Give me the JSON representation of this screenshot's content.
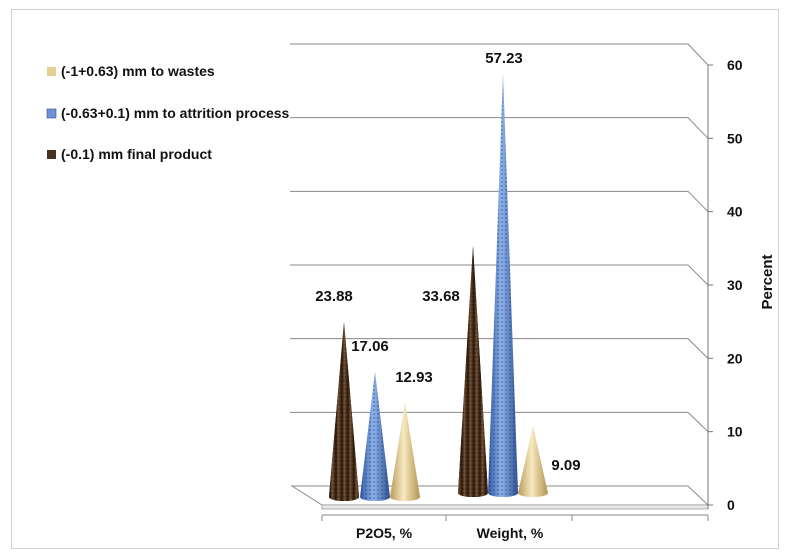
{
  "chart_data": {
    "type": "bar",
    "style": "3d-cone",
    "categories": [
      "P2O5, %",
      "Weight, %"
    ],
    "series": [
      {
        "name": "(-0.1) mm final product",
        "values": [
          23.88,
          33.68
        ],
        "color": "#4a3220"
      },
      {
        "name": "(-0.63+0.1) mm to attrition process",
        "values": [
          17.06,
          57.23
        ],
        "color": "#4f7bc4"
      },
      {
        "name": "(-1+0.63) mm to wastes",
        "values": [
          12.93,
          9.09
        ],
        "color": "#e6cf96"
      }
    ],
    "data_labels": [
      "23.88",
      "33.68",
      "17.06",
      "57.23",
      "12.93",
      "9.09"
    ],
    "ylabel": "Percent",
    "ylim": [
      0,
      60
    ],
    "yticks": [
      0,
      10,
      20,
      30,
      40,
      50,
      60
    ],
    "yaxis_position": "right",
    "grid": true,
    "legend_position": "top-left"
  }
}
